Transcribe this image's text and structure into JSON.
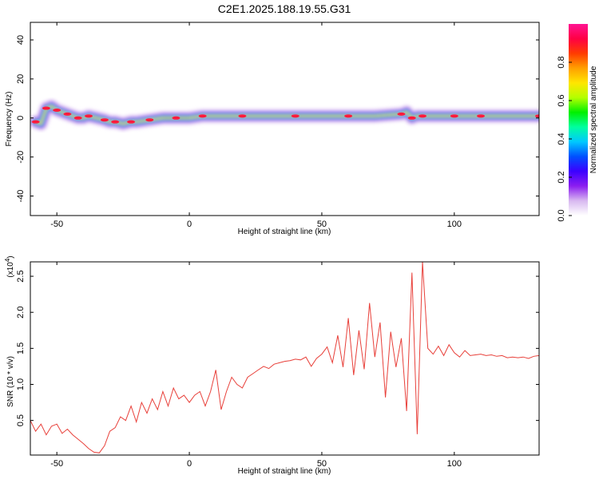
{
  "title": "C2E1.2025.188.19.55.G31",
  "chart_data": [
    {
      "type": "heatmap",
      "title": "C2E1.2025.188.19.55.G31",
      "xlabel": "Height of straight line (km)",
      "ylabel": "Frequency (Hz)",
      "xlim": [
        -60,
        132
      ],
      "ylim": [
        -50,
        49
      ],
      "x_ticks": [
        -50,
        0,
        50,
        100
      ],
      "y_ticks": [
        -40,
        -20,
        0,
        20,
        40
      ],
      "x_tick_labels": [
        "-50",
        "0",
        "50",
        "100"
      ],
      "y_tick_labels": [
        "-40",
        "-20",
        "0",
        "20",
        "40"
      ],
      "colorbar": {
        "label": "Normalized spectral amplitude",
        "range": [
          0,
          1
        ],
        "ticks": [
          0.0,
          0.2,
          0.4,
          0.6,
          0.8
        ],
        "tick_labels": [
          "0.0",
          "0.2",
          "0.4",
          "0.6",
          "0.8"
        ],
        "colors": [
          "#ffffff",
          "#d8b8f0",
          "#8c1ef0",
          "#3c00ff",
          "#0050ff",
          "#00c8ff",
          "#00ffa0",
          "#00f000",
          "#b4ff00",
          "#ffe600",
          "#ffa000",
          "#ff3c00",
          "#ff0044",
          "#ff1493"
        ]
      },
      "ridge": {
        "x": [
          -58,
          -56,
          -54,
          -52,
          -50,
          -48,
          -46,
          -44,
          -42,
          -40,
          -38,
          -35,
          -32,
          -30,
          -28,
          -25,
          -22,
          -20,
          -15,
          -10,
          -5,
          0,
          5,
          10,
          20,
          30,
          40,
          50,
          60,
          70,
          80,
          82,
          84,
          86,
          88,
          90,
          100,
          105,
          110,
          120,
          132
        ],
        "y": [
          -2,
          -3,
          5,
          6,
          4,
          3,
          2,
          1,
          0,
          0,
          1,
          0,
          -1,
          -2,
          -2,
          -3,
          -2,
          -2,
          -1,
          0,
          0,
          0,
          1,
          1,
          1,
          1,
          1,
          1,
          1,
          1,
          2,
          3,
          0,
          1,
          1,
          1,
          1,
          1,
          1,
          1,
          1
        ]
      }
    },
    {
      "type": "line",
      "xlabel": "Height of straight line (km)",
      "ylabel": "SNR (10 * v/v)",
      "y_multiplier": "(x10",
      "y_multiplier_exp": "4",
      "y_multiplier_close": ")",
      "xlim": [
        -60,
        132
      ],
      "ylim": [
        200,
        27000
      ],
      "x_ticks": [
        -50,
        0,
        50,
        100
      ],
      "y_ticks": [
        5000,
        10000,
        15000,
        20000,
        25000
      ],
      "x_tick_labels": [
        "-50",
        "0",
        "50",
        "100"
      ],
      "y_tick_labels": [
        "0.5",
        "1.0",
        "1.5",
        "2.0",
        "2.5"
      ],
      "line_color": "#e8403a",
      "series": [
        {
          "x": [
            -60,
            -58,
            -56,
            -54,
            -52,
            -50,
            -48,
            -46,
            -44,
            -42,
            -40,
            -38,
            -36,
            -34,
            -32,
            -30,
            -28,
            -26,
            -24,
            -22,
            -20,
            -18,
            -16,
            -14,
            -12,
            -10,
            -8,
            -6,
            -4,
            -2,
            0,
            2,
            4,
            6,
            8,
            10,
            12,
            14,
            16,
            18,
            20,
            22,
            24,
            26,
            28,
            30,
            32,
            34,
            36,
            38,
            40,
            42,
            44,
            46,
            48,
            50,
            52,
            54,
            56,
            58,
            60,
            62,
            64,
            66,
            68,
            70,
            72,
            74,
            76,
            78,
            80,
            82,
            84,
            86,
            88,
            90,
            92,
            94,
            96,
            98,
            100,
            102,
            104,
            106,
            108,
            110,
            112,
            114,
            116,
            118,
            120,
            122,
            124,
            126,
            128,
            130,
            132
          ],
          "y": [
            5000,
            3500,
            4500,
            3000,
            4200,
            4500,
            3200,
            3800,
            3000,
            2400,
            1800,
            1100,
            600,
            500,
            1500,
            3500,
            4000,
            5500,
            5000,
            7000,
            4800,
            7500,
            6000,
            8000,
            6500,
            9000,
            7000,
            9500,
            8000,
            8500,
            7500,
            8500,
            9000,
            7000,
            9000,
            12000,
            6500,
            9000,
            11000,
            10000,
            9500,
            11000,
            11500,
            12000,
            12500,
            12200,
            12800,
            13000,
            13200,
            13300,
            13500,
            13400,
            13800,
            12500,
            13600,
            14200,
            15200,
            13000,
            16800,
            12400,
            19200,
            11300,
            17500,
            12100,
            21300,
            13800,
            18600,
            8200,
            17300,
            12400,
            16400,
            6300,
            25500,
            3100,
            27000,
            15000,
            14200,
            15300,
            14000,
            15500,
            14400,
            13800,
            14700,
            14000,
            14100,
            14200,
            14000,
            14100,
            13900,
            14000,
            13700,
            13800,
            13700,
            13800,
            13600,
            13900,
            14000
          ]
        }
      ]
    }
  ]
}
